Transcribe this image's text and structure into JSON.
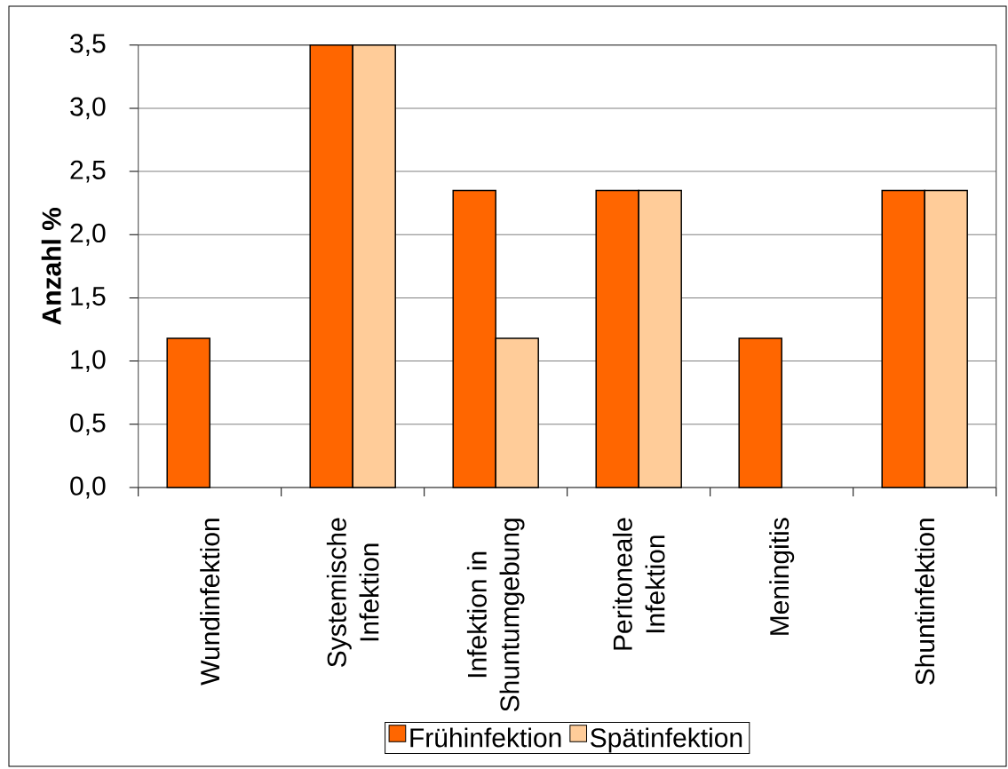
{
  "chart_data": {
    "type": "bar",
    "ylabel": "Anzahl %",
    "categories": [
      "Wundinfektion",
      "Systemische Infektion",
      "Infektion in Shuntumgebung",
      "Peritoneale Infektion",
      "Meningitis",
      "Shuntinfektion"
    ],
    "series": [
      {
        "name": "Frühinfektion",
        "color": "#ff6600",
        "values": [
          1.18,
          3.5,
          2.35,
          2.35,
          1.18,
          2.35
        ]
      },
      {
        "name": "Spätinfektion",
        "color": "#ffcc99",
        "values": [
          0,
          3.5,
          1.18,
          2.35,
          0,
          2.35
        ]
      }
    ],
    "ylim": [
      0,
      3.5
    ],
    "yticks": [
      {
        "value": 0,
        "label": "0,0"
      },
      {
        "value": 0.5,
        "label": "0,5"
      },
      {
        "value": 1,
        "label": "1,0"
      },
      {
        "value": 1.5,
        "label": "1,5"
      },
      {
        "value": 2,
        "label": "2,0"
      },
      {
        "value": 2.5,
        "label": "2,5"
      },
      {
        "value": 3,
        "label": "3,0"
      },
      {
        "value": 3.5,
        "label": "3,5"
      }
    ],
    "grid": "y",
    "legend": "bottom"
  }
}
